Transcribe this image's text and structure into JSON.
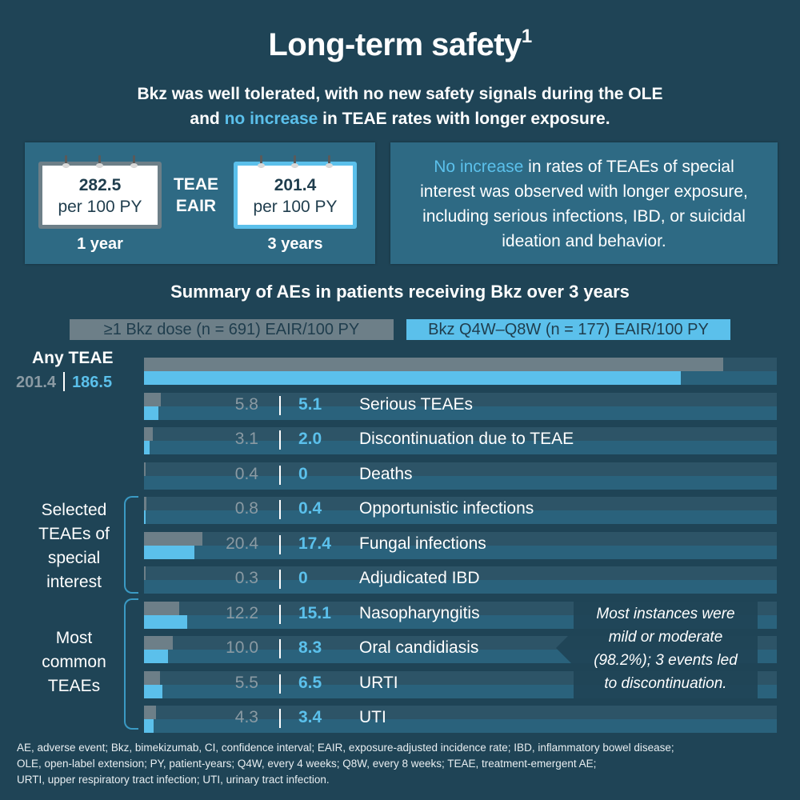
{
  "header": {
    "title": "Long-term safety",
    "title_sup": "1",
    "subtitle_line1": "Bkz was well tolerated, with no new safety signals during the OLE",
    "subtitle_line2_pre": "and ",
    "subtitle_line2_hl": "no increase",
    "subtitle_line2_post": " in TEAE rates with longer exposure."
  },
  "eair_panel": {
    "center_label_line1": "TEAE",
    "center_label_line2": "EAIR",
    "cards": [
      {
        "value": "282.5",
        "unit": "per 100 PY",
        "period": "1 year"
      },
      {
        "value": "201.4",
        "unit": "per 100 PY",
        "period": "3 years"
      }
    ]
  },
  "info_panel": {
    "highlight": "No increase",
    "text": " in rates of TEAEs of special interest was observed with longer exposure, including serious infections, IBD, or suicidal ideation and behavior."
  },
  "colors": {
    "background": "#1f4456",
    "panel": "#2e6a84",
    "gray_series": "#6d7f88",
    "blue_series": "#5bc0eb",
    "accent_text": "#5bc0eb"
  },
  "chart_data": {
    "type": "bar",
    "orientation": "horizontal",
    "title": "Summary of AEs in patients receiving Bkz over 3 years",
    "xlim": [
      0,
      220
    ],
    "unit": "EAIR/100 PY",
    "series": [
      {
        "name": "≥1 Bkz dose (n = 691) EAIR/100 PY",
        "color": "#6d7f88",
        "values": [
          201.4,
          5.8,
          3.1,
          0.4,
          0.8,
          20.4,
          0.3,
          12.2,
          10.0,
          5.5,
          4.3
        ]
      },
      {
        "name": "Bkz Q4W–Q8W (n = 177) EAIR/100 PY",
        "color": "#5bc0eb",
        "values": [
          186.5,
          5.1,
          2.0,
          0,
          0.4,
          17.4,
          0,
          15.1,
          8.3,
          6.5,
          3.4
        ]
      }
    ],
    "categories": [
      "Any TEAE",
      "Serious TEAEs",
      "Discontinuation due to TEAE",
      "Deaths",
      "Opportunistic infections",
      "Fungal infections",
      "Adjudicated IBD",
      "Nasopharyngitis",
      "Oral candidiasis",
      "URTI",
      "UTI"
    ],
    "value_labels_gray": [
      "201.4",
      "5.8",
      "3.1",
      "0.4",
      "0.8",
      "20.4",
      "0.3",
      "12.2",
      "10.0",
      "5.5",
      "4.3"
    ],
    "value_labels_blue": [
      "186.5",
      "5.1",
      "2.0",
      "0",
      "0.4",
      "17.4",
      "0",
      "15.1",
      "8.3",
      "6.5",
      "3.4"
    ],
    "groups": [
      {
        "label": "Selected TEAEs of special interest",
        "lines": [
          "Selected",
          "TEAEs of",
          "special",
          "interest"
        ],
        "from": 4,
        "to": 6
      },
      {
        "label": "Most common TEAEs",
        "lines": [
          "Most",
          "common",
          "TEAEs"
        ],
        "from": 7,
        "to": 10
      }
    ],
    "annotation": "Most instances were mild or moderate (98.2%); 3 events led to discontinuation.",
    "annotation_lines": [
      "Most instances were",
      "mild or moderate",
      "(98.2%); 3 events led",
      "to discontinuation."
    ],
    "legend": "top"
  },
  "footnote": {
    "lines": [
      "AE, adverse event; Bkz, bimekizumab, CI, confidence interval; EAIR, exposure-adjusted incidence rate; IBD, inflammatory bowel disease;",
      "OLE, open-label extension; PY, patient-years; Q4W, every 4 weeks; Q8W, every 8 weeks; TEAE, treatment-emergent AE;",
      "URTI, upper respiratory tract infection; UTI, urinary tract infection."
    ]
  }
}
